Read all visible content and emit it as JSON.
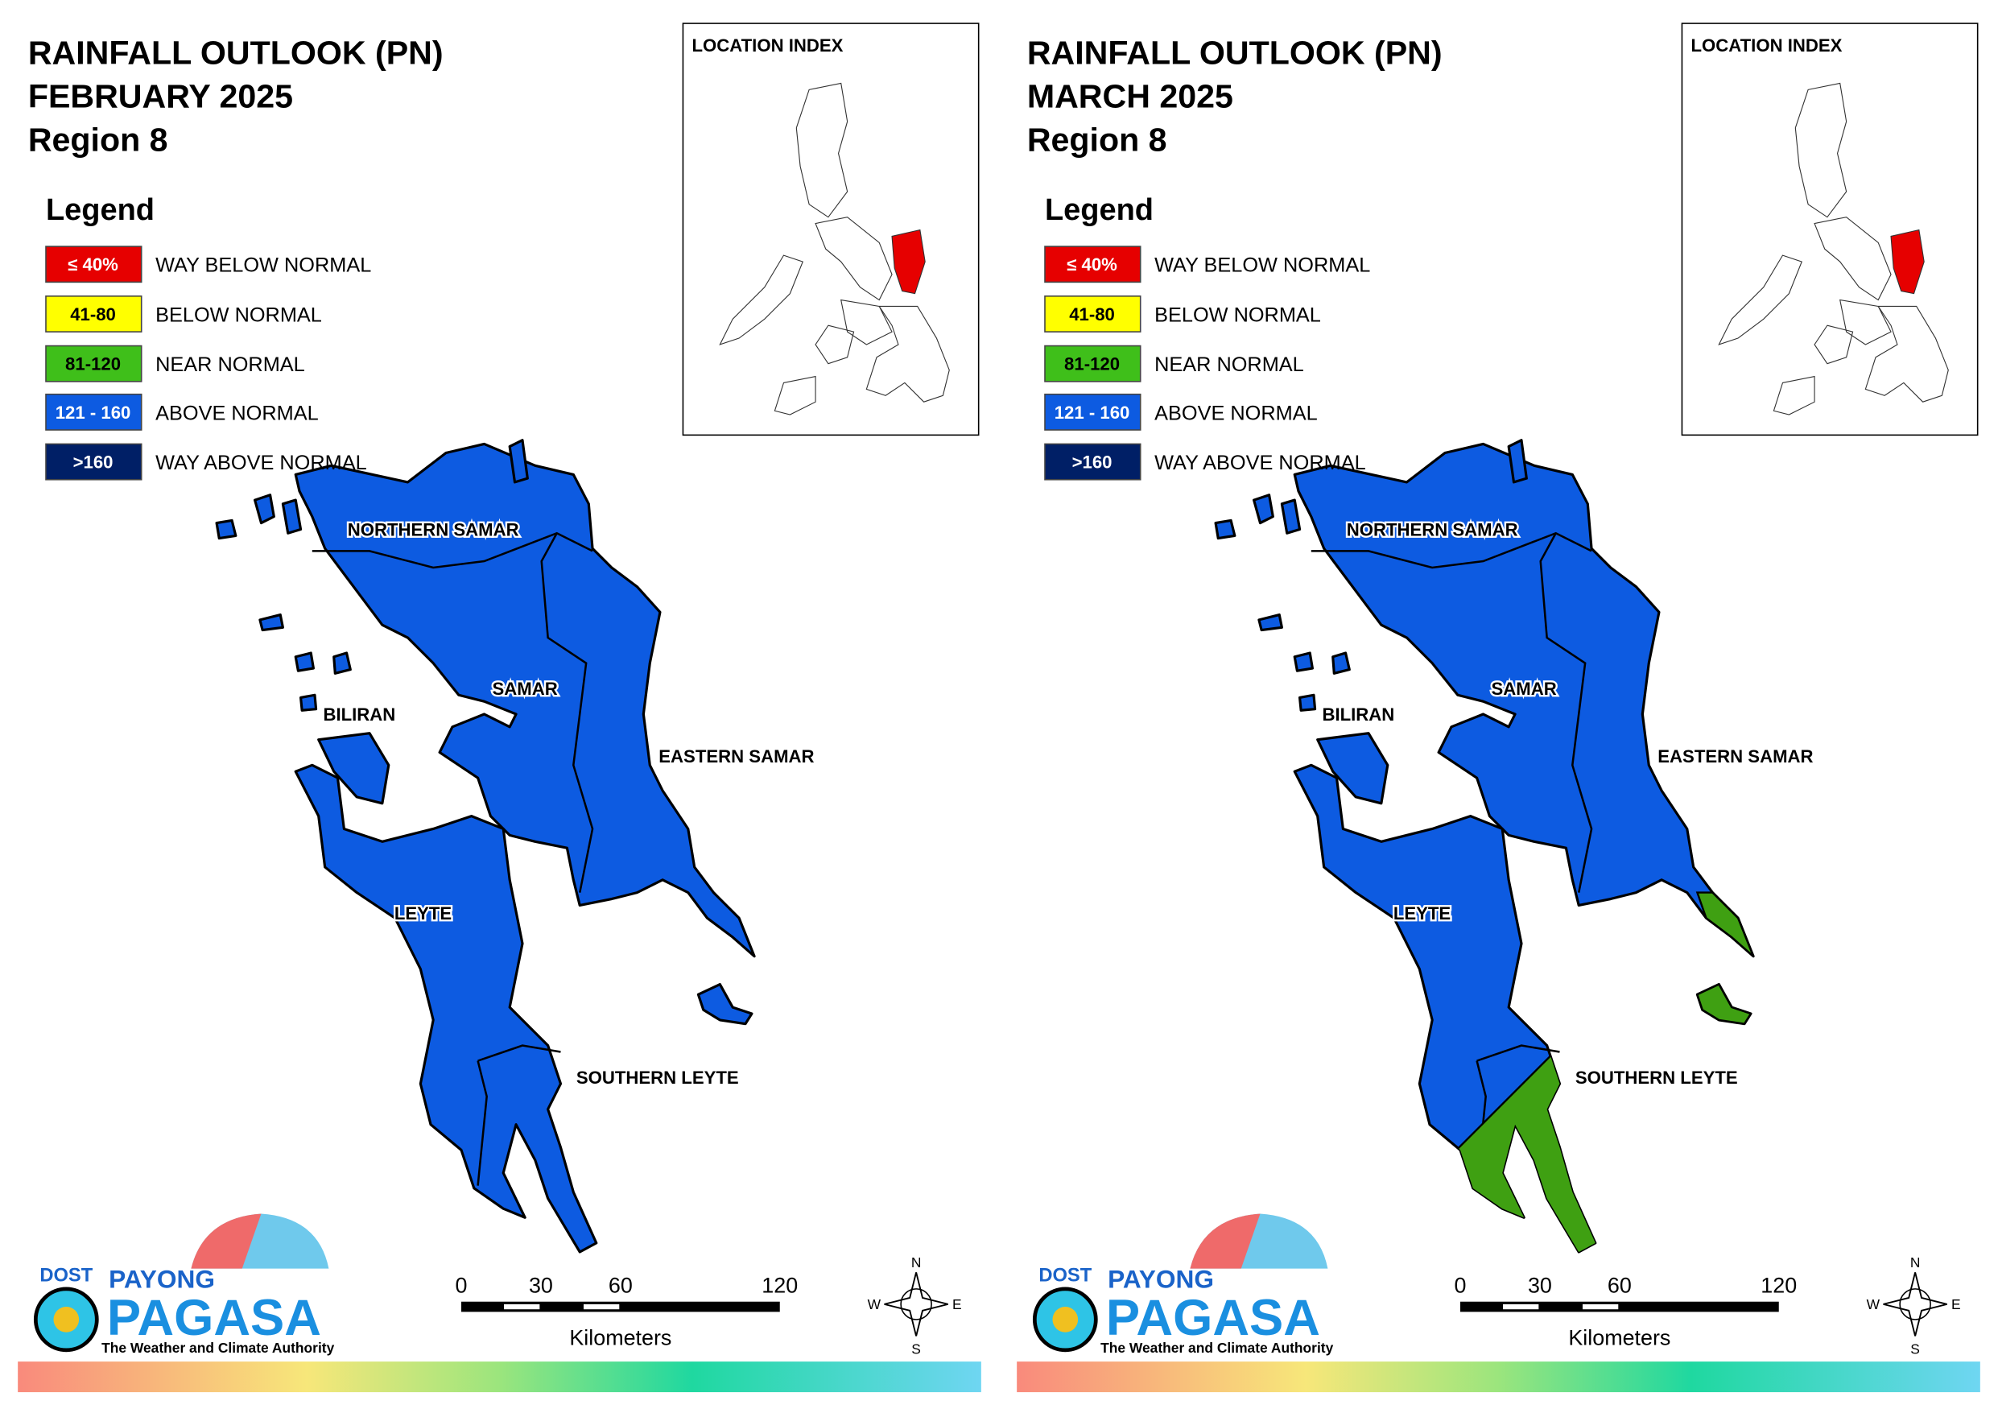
{
  "panels": [
    {
      "title": [
        "RAINFALL OUTLOOK (PN)",
        "FEBRUARY 2025",
        "Region 8"
      ],
      "location_index": "LOCATION INDEX",
      "legend": {
        "title": "Legend",
        "entries": [
          {
            "range": "≤ 40%",
            "label": "WAY BELOW NORMAL",
            "color": "#e60000"
          },
          {
            "range": "41-80",
            "label": "BELOW NORMAL",
            "color": "#ffff00"
          },
          {
            "range": "81-120",
            "label": "NEAR NORMAL",
            "color": "#3fbf1a"
          },
          {
            "range": "121 - 160",
            "label": "ABOVE NORMAL",
            "color": "#0d5be1"
          },
          {
            "range": ">160",
            "label": "WAY ABOVE NORMAL",
            "color": "#001f66"
          }
        ]
      },
      "provinces": [
        "NORTHERN SAMAR",
        "SAMAR",
        "BILIRAN",
        "EASTERN SAMAR",
        "LEYTE",
        "SOUTHERN LEYTE"
      ],
      "scale": {
        "ticks": [
          0,
          30,
          60,
          120
        ],
        "unit": "Kilometers"
      },
      "compass": [
        "N",
        "E",
        "S",
        "W"
      ],
      "logo": {
        "agency": "DOST",
        "brand_top": "PAYONG",
        "brand": "PAGASA",
        "tagline": "The Weather and Climate Authority"
      }
    },
    {
      "title": [
        "RAINFALL OUTLOOK (PN)",
        "MARCH 2025",
        "Region 8"
      ],
      "location_index": "LOCATION INDEX",
      "legend": {
        "title": "Legend",
        "entries": [
          {
            "range": "≤ 40%",
            "label": "WAY BELOW NORMAL",
            "color": "#e60000"
          },
          {
            "range": "41-80",
            "label": "BELOW NORMAL",
            "color": "#ffff00"
          },
          {
            "range": "81-120",
            "label": "NEAR NORMAL",
            "color": "#3fbf1a"
          },
          {
            "range": "121 - 160",
            "label": "ABOVE NORMAL",
            "color": "#0d5be1"
          },
          {
            "range": ">160",
            "label": "WAY ABOVE NORMAL",
            "color": "#001f66"
          }
        ]
      },
      "provinces": [
        "NORTHERN SAMAR",
        "SAMAR",
        "BILIRAN",
        "EASTERN SAMAR",
        "LEYTE",
        "SOUTHERN LEYTE"
      ],
      "scale": {
        "ticks": [
          0,
          30,
          60,
          120
        ],
        "unit": "Kilometers"
      },
      "compass": [
        "N",
        "E",
        "S",
        "W"
      ],
      "logo": {
        "agency": "DOST",
        "brand_top": "PAYONG",
        "brand": "PAGASA",
        "tagline": "The Weather and Climate Authority"
      }
    }
  ]
}
